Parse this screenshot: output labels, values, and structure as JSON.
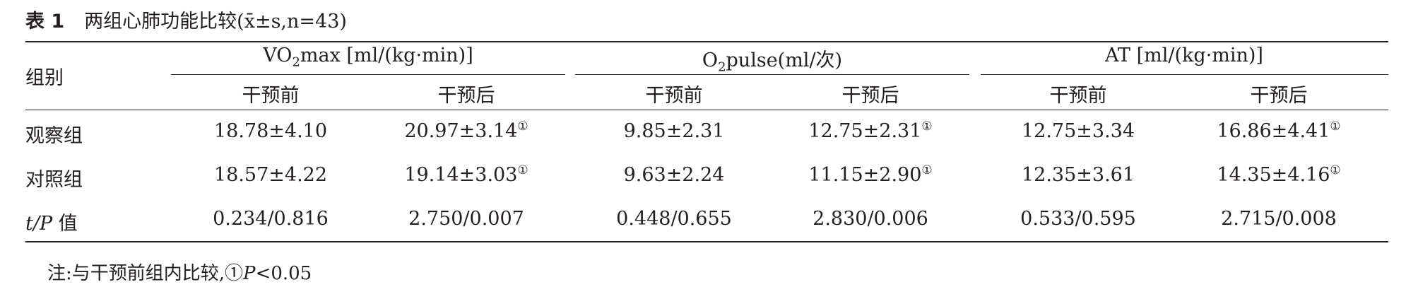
{
  "caption": {
    "label": "表 1",
    "title": "两组心肺功能比较(x̄±s,n=43)"
  },
  "table": {
    "row_header": "组别",
    "groups": [
      {
        "name_pre": "VO",
        "name_sub": "2",
        "name_post": "max [ml/(kg·min)]"
      },
      {
        "name_pre": "O",
        "name_sub": "2",
        "name_post": "pulse(ml/次)"
      },
      {
        "name_pre": "AT [ml/(kg·min)]",
        "name_sub": "",
        "name_post": ""
      }
    ],
    "subheaders": [
      "干预前",
      "干预后",
      "干预前",
      "干预后",
      "干预前",
      "干预后"
    ],
    "rows": [
      {
        "label": "观察组",
        "cells": [
          "18.78±4.10",
          "20.97±3.14",
          "9.85±2.31",
          "12.75±2.31",
          "12.75±3.34",
          "16.86±4.41"
        ],
        "marks": [
          "",
          "①",
          "",
          "①",
          "",
          "①"
        ]
      },
      {
        "label": "对照组",
        "cells": [
          "18.57±4.22",
          "19.14±3.03",
          "9.63±2.24",
          "11.15±2.90",
          "12.35±3.61",
          "14.35±4.16"
        ],
        "marks": [
          "",
          "①",
          "",
          "①",
          "",
          "①"
        ]
      },
      {
        "label_italic": "t/P",
        "label_rest": " 值",
        "cells": [
          "0.234/0.816",
          "2.750/0.007",
          "0.448/0.655",
          "2.830/0.006",
          "0.533/0.595",
          "2.715/0.008"
        ],
        "marks": [
          "",
          "",
          "",
          "",
          "",
          ""
        ]
      }
    ]
  },
  "note": {
    "prefix": "注:与干预前组内比较,①",
    "p_italic": "P",
    "suffix": "<0.05"
  }
}
